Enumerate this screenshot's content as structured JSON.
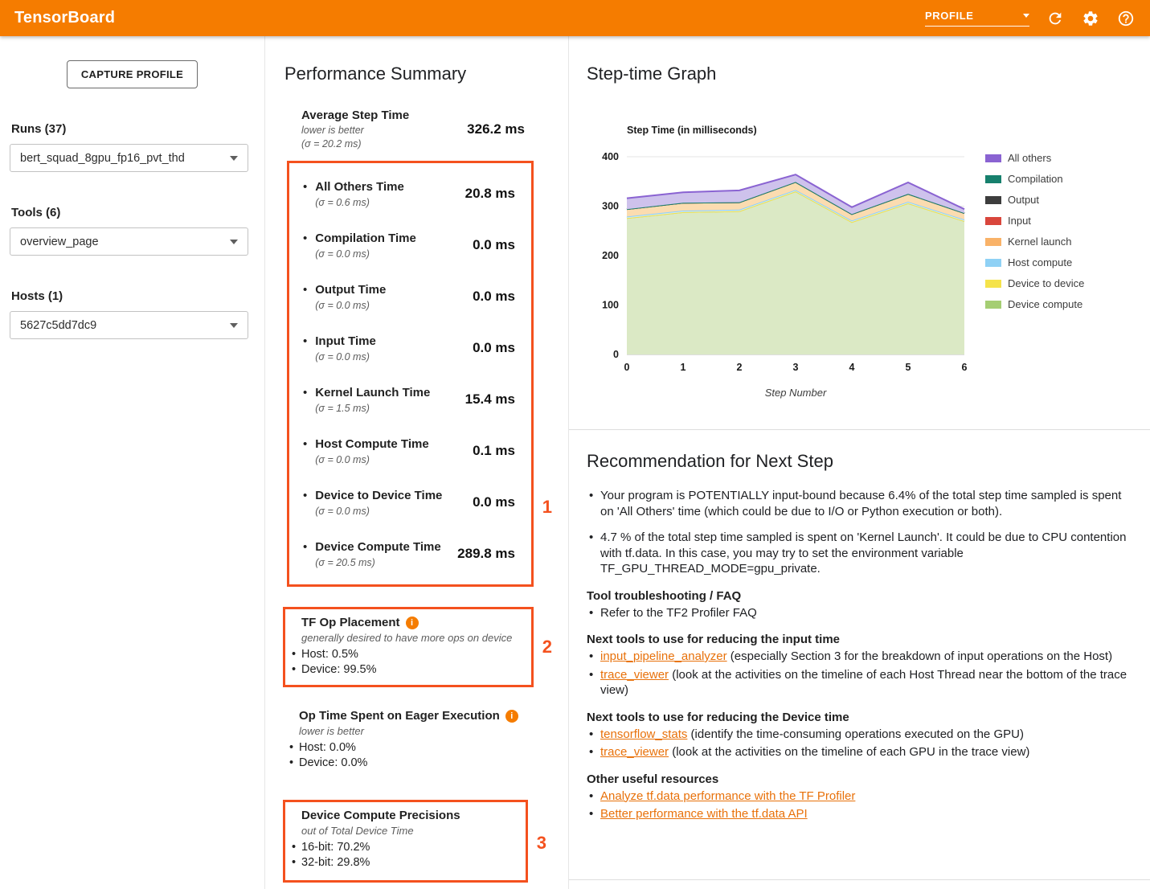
{
  "header": {
    "title": "TensorBoard",
    "nav_select": {
      "value": "PROFILE"
    },
    "icons": [
      "refresh-icon",
      "gear-icon",
      "help-icon"
    ]
  },
  "sidebar": {
    "capture_button": "CAPTURE PROFILE",
    "runs": {
      "label": "Runs (37)",
      "value": "bert_squad_8gpu_fp16_pvt_thd"
    },
    "tools": {
      "label": "Tools (6)",
      "value": "overview_page"
    },
    "hosts": {
      "label": "Hosts (1)",
      "value": "5627c5dd7dc9"
    }
  },
  "performance_summary": {
    "title": "Performance Summary",
    "average": {
      "label": "Average Step Time",
      "note": "lower is better",
      "sigma": "(σ = 20.2 ms)",
      "value": "326.2 ms"
    },
    "metrics": [
      {
        "label": "All Others Time",
        "sigma": "(σ = 0.6 ms)",
        "value": "20.8 ms"
      },
      {
        "label": "Compilation Time",
        "sigma": "(σ = 0.0 ms)",
        "value": "0.0 ms"
      },
      {
        "label": "Output Time",
        "sigma": "(σ = 0.0 ms)",
        "value": "0.0 ms"
      },
      {
        "label": "Input Time",
        "sigma": "(σ = 0.0 ms)",
        "value": "0.0 ms"
      },
      {
        "label": "Kernel Launch Time",
        "sigma": "(σ = 1.5 ms)",
        "value": "15.4 ms"
      },
      {
        "label": "Host Compute Time",
        "sigma": "(σ = 0.0 ms)",
        "value": "0.1 ms"
      },
      {
        "label": "Device to Device Time",
        "sigma": "(σ = 0.0 ms)",
        "value": "0.0 ms"
      },
      {
        "label": "Device Compute Time",
        "sigma": "(σ = 20.5 ms)",
        "value": "289.8 ms"
      }
    ],
    "annotations": [
      "1",
      "2",
      "3"
    ],
    "tf_op_placement": {
      "title": "TF Op Placement",
      "note": "generally desired to have more ops on device",
      "items": [
        "Host: 0.5%",
        "Device: 99.5%"
      ]
    },
    "eager": {
      "title": "Op Time Spent on Eager Execution",
      "note": "lower is better",
      "items": [
        "Host: 0.0%",
        "Device: 0.0%"
      ]
    },
    "precisions": {
      "title": "Device Compute Precisions",
      "note": "out of Total Device Time",
      "items": [
        "16-bit: 70.2%",
        "32-bit: 29.8%"
      ]
    }
  },
  "step_time_graph": {
    "title": "Step-time Graph"
  },
  "chart_data": {
    "type": "area",
    "stacked": true,
    "title": "Step Time (in milliseconds)",
    "xlabel": "Step Number",
    "x": [
      0,
      1,
      2,
      3,
      4,
      5,
      6
    ],
    "ylim": [
      0,
      400
    ],
    "yticks": [
      0,
      100,
      200,
      300,
      400
    ],
    "grid": true,
    "legend_position": "right",
    "series": [
      {
        "name": "Device compute",
        "color": "#a5ce73",
        "fill": "#dbe9c5",
        "values": [
          276,
          288,
          290,
          330,
          268,
          306,
          270
        ]
      },
      {
        "name": "Device to device",
        "color": "#f5e34b",
        "fill": "#fdf6b8",
        "values": [
          0,
          0,
          0,
          0,
          0,
          0,
          0
        ]
      },
      {
        "name": "Host compute",
        "color": "#8fd1f5",
        "fill": "#d5ecfb",
        "values": [
          3,
          3,
          3,
          3,
          3,
          3,
          3
        ]
      },
      {
        "name": "Kernel launch",
        "color": "#f9b268",
        "fill": "#fbdcb0",
        "values": [
          15,
          16,
          15,
          16,
          13,
          16,
          13
        ]
      },
      {
        "name": "Input",
        "color": "#d9463c",
        "fill": "#f5c9c5",
        "values": [
          0,
          0,
          0,
          0,
          0,
          0,
          0
        ]
      },
      {
        "name": "Output",
        "color": "#3d3d3d",
        "fill": "#dddddd",
        "values": [
          0,
          0,
          0,
          0,
          0,
          0,
          0
        ]
      },
      {
        "name": "Compilation",
        "color": "#17806d",
        "fill": "#c4e3dc",
        "values": [
          0,
          0,
          0,
          0,
          0,
          0,
          0
        ]
      },
      {
        "name": "All others",
        "color": "#8a63d2",
        "fill": "#cec2ec",
        "values": [
          22,
          21,
          24,
          15,
          14,
          23,
          8
        ]
      }
    ]
  },
  "recommendation": {
    "title": "Recommendation for Next Step",
    "intro_bullets": [
      {
        "segments": [
          {
            "text": "Your program is POTENTIALLY input-bound because 6.4% of the total step time sampled is spent on 'All Others' time (which could be due to I/O or Python execution or both)."
          }
        ]
      },
      {
        "segments": [
          {
            "text": "4.7 % of the total step time sampled is spent on 'Kernel Launch'. It could be due to CPU contention with tf.data. In this case, you may try to set the environment variable TF_GPU_THREAD_MODE=gpu_private."
          }
        ]
      }
    ],
    "sections": [
      {
        "heading": "Tool troubleshooting / FAQ",
        "bullets": [
          {
            "segments": [
              {
                "text": "Refer to the TF2 Profiler FAQ"
              }
            ]
          }
        ]
      },
      {
        "heading": "Next tools to use for reducing the input time",
        "bullets": [
          {
            "segments": [
              {
                "text": "input_pipeline_analyzer",
                "link": true
              },
              {
                "text": " (especially Section 3 for the breakdown of input operations on the Host)"
              }
            ]
          },
          {
            "segments": [
              {
                "text": "trace_viewer",
                "link": true
              },
              {
                "text": " (look at the activities on the timeline of each Host Thread near the bottom of the trace view)"
              }
            ]
          }
        ]
      },
      {
        "heading": "Next tools to use for reducing the Device time",
        "bullets": [
          {
            "segments": [
              {
                "text": "tensorflow_stats",
                "link": true
              },
              {
                "text": " (identify the time-consuming operations executed on the GPU)"
              }
            ]
          },
          {
            "segments": [
              {
                "text": "trace_viewer",
                "link": true
              },
              {
                "text": " (look at the activities on the timeline of each GPU in the trace view)"
              }
            ]
          }
        ]
      },
      {
        "heading": "Other useful resources",
        "bullets": [
          {
            "segments": [
              {
                "text": "Analyze tf.data performance with the TF Profiler",
                "link": true
              }
            ]
          },
          {
            "segments": [
              {
                "text": "Better performance with the tf.data API",
                "link": true
              }
            ]
          }
        ]
      }
    ]
  }
}
